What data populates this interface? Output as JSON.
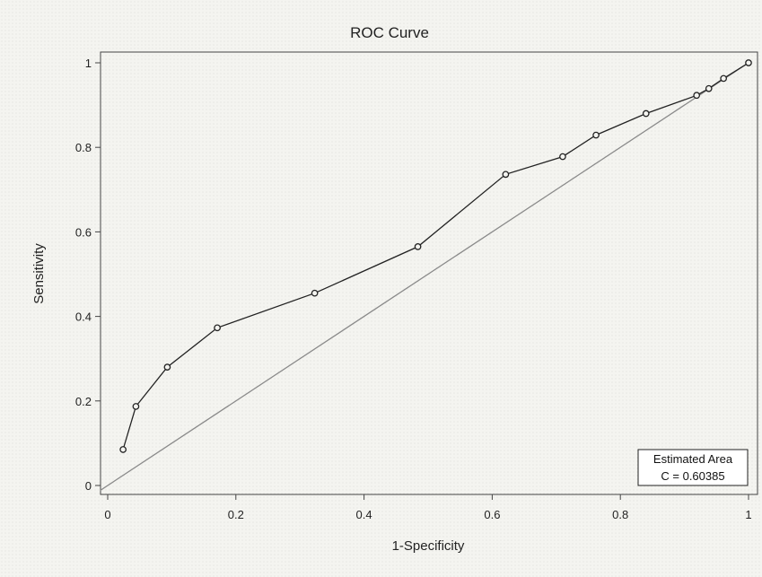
{
  "chart_data": {
    "type": "line",
    "title": "ROC Curve",
    "xlabel": "1-Specificity",
    "ylabel": "Sensitivity",
    "xlim": [
      0,
      1
    ],
    "ylim": [
      0,
      1
    ],
    "xticks": [
      0,
      0.2,
      0.4,
      0.6,
      0.8,
      1
    ],
    "yticks": [
      0,
      0.2,
      0.4,
      0.6,
      0.8,
      1
    ],
    "xtick_labels": [
      "0",
      "0.2",
      "0.4",
      "0.6",
      "0.8",
      "1"
    ],
    "ytick_labels": [
      "0",
      "0.2",
      "0.4",
      "0.6",
      "0.8",
      "1"
    ],
    "grid": false,
    "legend_placement": "bottom-right",
    "series": [
      {
        "x": [
          0.024,
          0.044,
          0.093,
          0.171,
          0.323,
          0.484,
          0.621,
          0.71,
          0.762,
          0.84,
          0.919,
          0.938,
          0.961,
          1.0
        ],
        "y": [
          0.085,
          0.187,
          0.28,
          0.373,
          0.455,
          0.565,
          0.736,
          0.778,
          0.829,
          0.88,
          0.923,
          0.939,
          0.963,
          1.0
        ]
      }
    ],
    "reference_line": {
      "x": [
        0,
        1
      ],
      "y": [
        0,
        1
      ]
    },
    "annotation": {
      "title": "Estimated Area",
      "text": "C =  0.60385"
    },
    "colors": {
      "curve": "#222222",
      "reference": "#8a8a8a",
      "frame": "#444444"
    }
  }
}
